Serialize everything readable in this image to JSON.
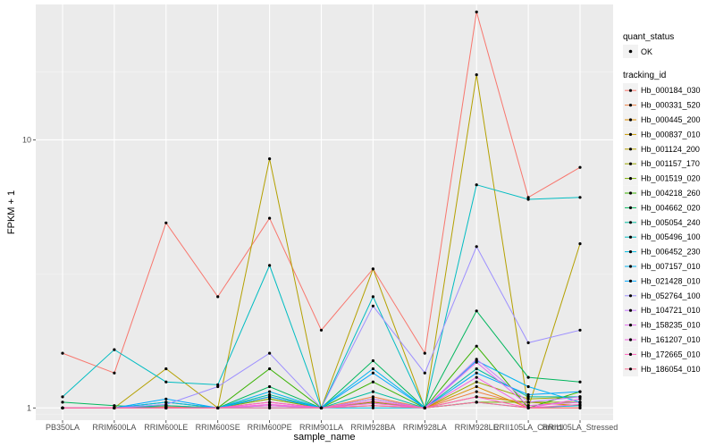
{
  "chart_data": {
    "type": "line",
    "xlabel": "sample_name",
    "ylabel": "FPKM + 1",
    "y_scale": "log10",
    "ylim": [
      0.9,
      32
    ],
    "y_ticks": [
      1,
      10
    ],
    "y_tick_labels": [
      "1",
      "10"
    ],
    "categories": [
      "PB350LA",
      "RRIM600LA",
      "RRIM600LE",
      "RRIM600SE",
      "RRIM600PE",
      "RRIM901LA",
      "RRIM928BA",
      "RRIM928LA",
      "RRIM928LE",
      "RRII105LA_Control",
      "RRII105LA_Stressed"
    ],
    "legend_point": {
      "title": "quant_status",
      "label": "OK"
    },
    "legend_title": "tracking_id",
    "series": [
      {
        "name": "Hb_000184_030",
        "color": "#F8766D",
        "values": [
          1.6,
          1.35,
          4.9,
          2.6,
          5.1,
          1.95,
          3.3,
          1.6,
          30,
          6.1,
          7.9
        ]
      },
      {
        "name": "Hb_000331_520",
        "color": "#EE8044",
        "values": [
          1.0,
          1.0,
          1.01,
          1.0,
          1.08,
          1.0,
          1.1,
          1.0,
          1.15,
          1.02,
          1.05
        ]
      },
      {
        "name": "Hb_000445_200",
        "color": "#DE8C00",
        "values": [
          1.0,
          1.0,
          1.0,
          1.0,
          1.02,
          1.0,
          1.05,
          1.0,
          1.2,
          1.0,
          1.0
        ]
      },
      {
        "name": "Hb_000837_010",
        "color": "#C79800",
        "values": [
          1.0,
          1.0,
          1.0,
          1.0,
          1.05,
          1.0,
          1.02,
          1.0,
          1.1,
          1.05,
          1.02
        ]
      },
      {
        "name": "Hb_001124_200",
        "color": "#B4A000",
        "values": [
          1.0,
          1.0,
          1.4,
          1.0,
          8.5,
          1.0,
          3.3,
          1.0,
          17.5,
          1.0,
          4.1
        ]
      },
      {
        "name": "Hb_001157_170",
        "color": "#9CA700",
        "values": [
          1.0,
          1.0,
          1.0,
          1.0,
          1.1,
          1.0,
          1.08,
          1.0,
          1.25,
          1.08,
          1.1
        ]
      },
      {
        "name": "Hb_001519_020",
        "color": "#7CAE00",
        "values": [
          1.0,
          1.0,
          1.02,
          1.0,
          1.08,
          1.0,
          1.05,
          1.0,
          1.05,
          1.05,
          1.05
        ]
      },
      {
        "name": "Hb_004218_260",
        "color": "#38B200",
        "values": [
          1.0,
          1.0,
          1.05,
          1.0,
          1.4,
          1.0,
          1.25,
          1.0,
          1.7,
          1.0,
          1.15
        ]
      },
      {
        "name": "Hb_004662_020",
        "color": "#00B65D",
        "values": [
          1.05,
          1.02,
          1.0,
          1.0,
          1.2,
          1.0,
          1.5,
          1.0,
          2.3,
          1.3,
          1.25
        ]
      },
      {
        "name": "Hb_005054_240",
        "color": "#00BB9F",
        "values": [
          1.0,
          1.0,
          1.02,
          1.0,
          1.12,
          1.0,
          1.15,
          1.0,
          1.4,
          1.1,
          1.1
        ]
      },
      {
        "name": "Hb_005496_100",
        "color": "#00BCC2",
        "values": [
          1.1,
          1.65,
          1.25,
          1.22,
          3.4,
          1.0,
          2.6,
          1.0,
          6.8,
          6.0,
          6.1
        ]
      },
      {
        "name": "Hb_006452_230",
        "color": "#00BAE0",
        "values": [
          1.0,
          1.0,
          1.0,
          1.0,
          1.0,
          1.0,
          1.0,
          1.0,
          1.05,
          1.0,
          1.02
        ]
      },
      {
        "name": "Hb_007157_010",
        "color": "#00B4F0",
        "values": [
          1.0,
          1.0,
          1.05,
          1.0,
          1.15,
          1.0,
          1.4,
          1.0,
          1.5,
          1.2,
          1.05
        ]
      },
      {
        "name": "Hb_021428_010",
        "color": "#00A8FF",
        "values": [
          1.0,
          1.0,
          1.08,
          1.0,
          1.1,
          1.0,
          1.35,
          1.0,
          1.35,
          1.12,
          1.15
        ]
      },
      {
        "name": "Hb_052764_100",
        "color": "#9D8FFF",
        "values": [
          1.0,
          1.0,
          1.03,
          1.2,
          1.6,
          1.0,
          2.4,
          1.35,
          4.0,
          1.75,
          1.95
        ]
      },
      {
        "name": "Hb_104721_010",
        "color": "#C77CFF",
        "values": [
          1.0,
          1.0,
          1.0,
          1.0,
          1.05,
          1.0,
          1.08,
          1.0,
          1.52,
          1.05,
          1.1
        ]
      },
      {
        "name": "Hb_158235_010",
        "color": "#E46BF0",
        "values": [
          1.0,
          1.0,
          1.0,
          1.0,
          1.02,
          1.0,
          1.02,
          1.0,
          1.48,
          1.02,
          1.05
        ]
      },
      {
        "name": "Hb_161207_010",
        "color": "#F464E2",
        "values": [
          1.0,
          1.0,
          1.0,
          1.0,
          1.03,
          1.0,
          1.04,
          1.0,
          1.3,
          1.0,
          1.08
        ]
      },
      {
        "name": "Hb_172665_010",
        "color": "#FF62BC",
        "values": [
          1.0,
          1.0,
          1.0,
          1.0,
          1.05,
          1.0,
          1.06,
          1.0,
          1.1,
          1.0,
          1.03
        ]
      },
      {
        "name": "Hb_186054_010",
        "color": "#FF6C91",
        "values": [
          1.0,
          1.0,
          1.0,
          1.0,
          1.0,
          1.0,
          1.02,
          1.0,
          1.05,
          1.0,
          1.0
        ]
      }
    ]
  }
}
